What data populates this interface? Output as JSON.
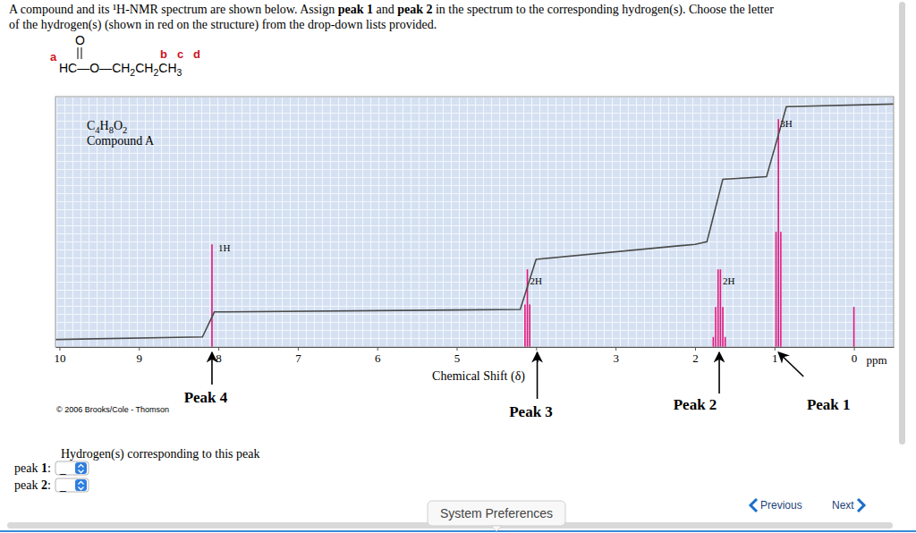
{
  "question": {
    "lines": [
      [
        {
          "text": "A compound and its ¹H-NMR spectrum are shown below. Assign "
        },
        {
          "text": "peak 1",
          "style": "bold"
        },
        {
          "text": " and "
        },
        {
          "text": "peak 2",
          "style": "bold"
        },
        {
          "text": " in the spectrum to the corresponding hydrogen(s). Choose the letter"
        }
      ],
      [
        {
          "text": "of the hydrogen(s) (shown in red on the structure) from the drop-down lists provided."
        }
      ]
    ]
  },
  "structure": {
    "carbonyl_oxygen": "O",
    "formula": [
      {
        "text": "HC"
      },
      {
        "text": "—O—"
      },
      {
        "text": "CH"
      },
      {
        "text": "2",
        "style": "sub"
      },
      {
        "text": "CH"
      },
      {
        "text": "2",
        "style": "sub"
      },
      {
        "text": "CH"
      },
      {
        "text": "3",
        "style": "sub"
      }
    ],
    "labels": [
      "a",
      "b",
      "c",
      "d"
    ]
  },
  "chart_data": {
    "type": "spectrum",
    "compound_formula": [
      {
        "text": "C"
      },
      {
        "text": "4",
        "style": "sub"
      },
      {
        "text": "H"
      },
      {
        "text": "8",
        "style": "sub"
      },
      {
        "text": "O"
      },
      {
        "text": "2",
        "style": "sub"
      }
    ],
    "compound_name": "Compound A",
    "x_label": "Chemical Shift (δ)",
    "x_unit": "ppm",
    "copyright": "© 2006 Brooks/Cole - Thomson",
    "xlim": [
      10.05,
      -0.5
    ],
    "ylim": [
      0,
      100
    ],
    "xticks": [
      10,
      9,
      8,
      7,
      6,
      5,
      4,
      3,
      2,
      1,
      0
    ],
    "grid": true,
    "tick_labels": "x",
    "series": [
      {
        "type": "stem",
        "label": "Peak 4",
        "integral_label": "1H",
        "color": "#e5177f",
        "x": [
          8.08
        ],
        "values": [
          41
        ]
      },
      {
        "type": "stem",
        "label": "Peak 3",
        "integral_label": "2H",
        "color": "#e5177f",
        "x": [
          4.14,
          4.11,
          4.08
        ],
        "values": [
          17,
          31,
          17
        ]
      },
      {
        "type": "stem",
        "label": "Peak 2",
        "integral_label": "2H",
        "color": "#e5177f",
        "x": [
          1.77,
          1.74,
          1.71,
          1.68,
          1.65,
          1.62
        ],
        "values": [
          4,
          16,
          31,
          31,
          16,
          4
        ]
      },
      {
        "type": "stem",
        "label": "Peak 1",
        "integral_label": "3H",
        "color": "#e5177f",
        "x": [
          0.98,
          0.95,
          0.92
        ],
        "values": [
          46,
          91,
          46
        ]
      },
      {
        "type": "stem",
        "color": "#e5177f",
        "x": [
          0
        ],
        "values": [
          16
        ]
      },
      {
        "type": "line",
        "color": "#4a4a4a",
        "x": [
          10.05,
          8.2,
          8.05,
          4.2,
          4.0,
          2.0,
          1.85,
          1.65,
          1.1,
          0.85,
          -0.5
        ],
        "values": [
          3,
          4,
          14,
          15,
          35,
          41,
          42,
          67,
          68,
          96,
          97
        ]
      }
    ]
  },
  "answer_section": {
    "heading": "Hydrogen(s) corresponding to this peak",
    "items": [
      {
        "label": [
          {
            "text": "peak "
          },
          {
            "text": "1",
            "style": "bold"
          },
          {
            "text": ":"
          }
        ],
        "selected": "_"
      },
      {
        "label": [
          {
            "text": "peak "
          },
          {
            "text": "2",
            "style": "bold"
          },
          {
            "text": ":"
          }
        ],
        "selected": "_"
      }
    ]
  },
  "tooltip": "System Preferences",
  "navigation": {
    "previous": "Previous",
    "next": "Next"
  }
}
